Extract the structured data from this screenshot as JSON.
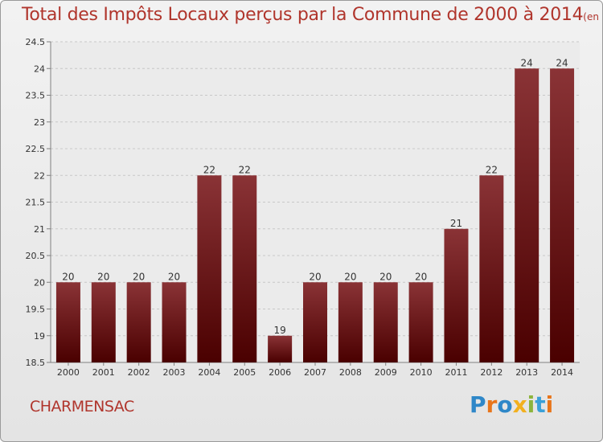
{
  "header": {
    "title": "Total des Impôts Locaux perçus par la Commune de 2000 à 2014",
    "unit": "(en milliers d'€)"
  },
  "footer": {
    "commune": "CHARMENSAC",
    "logo_letters": [
      "P",
      "r",
      "o",
      "x",
      "i",
      "t",
      "i"
    ],
    "logo_colors": [
      "#2e87c8",
      "#e8751a",
      "#2e87c8",
      "#f2b01e",
      "#8cb43c",
      "#3aa0d8",
      "#e8751a"
    ]
  },
  "chart_data": {
    "type": "bar",
    "categories": [
      "2000",
      "2001",
      "2002",
      "2003",
      "2004",
      "2005",
      "2006",
      "2007",
      "2008",
      "2009",
      "2010",
      "2011",
      "2012",
      "2013",
      "2014"
    ],
    "values": [
      20,
      20,
      20,
      20,
      22,
      22,
      19,
      20,
      20,
      20,
      20,
      21,
      22,
      24,
      24
    ],
    "data_labels": [
      "20",
      "20",
      "20",
      "20",
      "22",
      "22",
      "19",
      "20",
      "20",
      "20",
      "20",
      "21",
      "22",
      "24",
      "24"
    ],
    "ylim": [
      18.5,
      24.5
    ],
    "yticks": [
      18.5,
      19,
      19.5,
      20,
      20.5,
      21,
      21.5,
      22,
      22.5,
      23,
      23.5,
      24,
      24.5
    ],
    "ytick_labels": [
      "18.5",
      "19",
      "19.5",
      "20",
      "20.5",
      "21",
      "21.5",
      "22",
      "22.5",
      "23",
      "23.5",
      "24",
      "24.5"
    ],
    "grid": "horizontal dashed",
    "bar_color_top": "#8a3336",
    "bar_color_bottom": "#4a0000"
  }
}
